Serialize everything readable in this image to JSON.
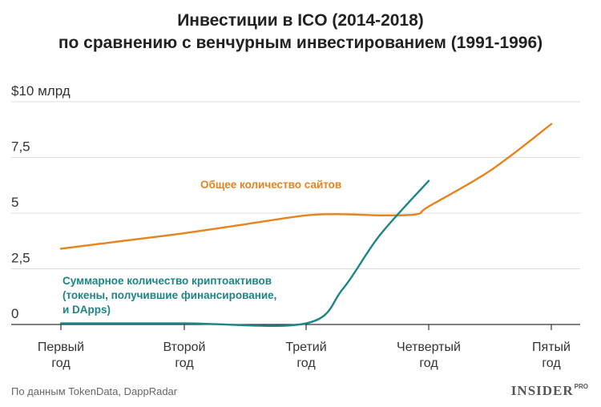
{
  "chart_data": {
    "type": "line",
    "title_lines": [
      "Инвестиции в ICO (2014-2018)",
      "по сравнению с венчурным инвестированием (1991-1996)"
    ],
    "ylim": [
      0,
      10
    ],
    "y_ticks": [
      {
        "value": 10,
        "label": "$10 млрд"
      },
      {
        "value": 7.5,
        "label": "7,5"
      },
      {
        "value": 5,
        "label": "5"
      },
      {
        "value": 2.5,
        "label": "2,5"
      },
      {
        "value": 0,
        "label": "0"
      }
    ],
    "categories": [
      [
        "Первый",
        "год"
      ],
      [
        "Второй",
        "год"
      ],
      [
        "Третий",
        "год"
      ],
      [
        "Четвертый",
        "год"
      ],
      [
        "Пятый",
        "год"
      ]
    ],
    "series": [
      {
        "name": "Общее количество сайтов",
        "color": "#e8821e",
        "label_lines": [
          "Общее количество сайтов"
        ],
        "points": [
          [
            0,
            3.4
          ],
          [
            0.5,
            3.75
          ],
          [
            1,
            4.1
          ],
          [
            1.5,
            4.5
          ],
          [
            2,
            4.9
          ],
          [
            2.3,
            4.95
          ],
          [
            2.6,
            4.9
          ],
          [
            2.9,
            4.95
          ],
          [
            3.0,
            5.3
          ],
          [
            3.5,
            6.9
          ],
          [
            4,
            9.0
          ]
        ]
      },
      {
        "name": "Суммарное количество криптоактивов (токены, получившие финансирование, и DApps)",
        "color": "#1e8484",
        "label_lines": [
          "Суммарное количество криптоактивов",
          "(токены, получившие финансирование,",
          "и DApps)"
        ],
        "points": [
          [
            0,
            0.05
          ],
          [
            1,
            0.05
          ],
          [
            2,
            0.05
          ],
          [
            2.3,
            1.6
          ],
          [
            2.6,
            4.0
          ],
          [
            3.0,
            6.45
          ]
        ]
      }
    ]
  },
  "footer": {
    "source": "По данным TokenData, DappRadar",
    "brand": "INSIDER",
    "brand_suffix": "PRO"
  }
}
